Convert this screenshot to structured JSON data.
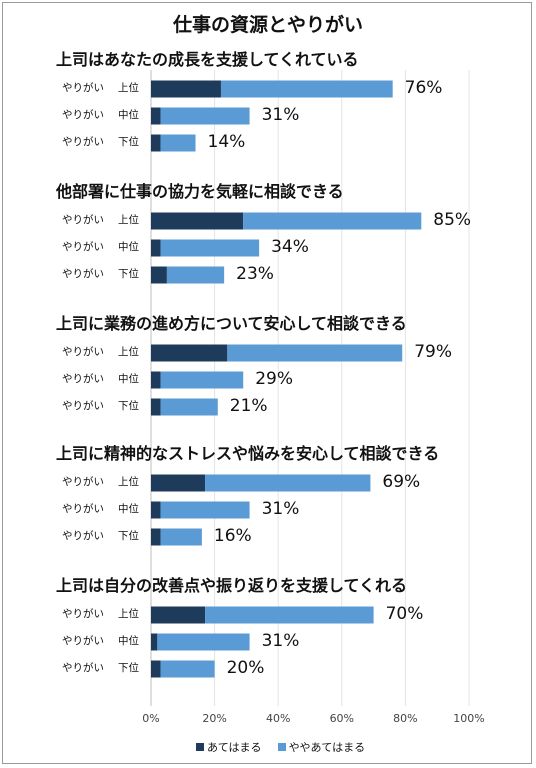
{
  "chart_data": {
    "type": "bar",
    "orientation": "horizontal",
    "stacked": true,
    "title": "仕事の資源とやりがい",
    "xlim": [
      0,
      100
    ],
    "xticks": [
      "0%",
      "20%",
      "40%",
      "60%",
      "80%",
      "100%"
    ],
    "grid": true,
    "legend_position": "bottom",
    "series": [
      {
        "name": "あてはまる",
        "color": "#1f3b5c"
      },
      {
        "name": "ややあてはまる",
        "color": "#5b9bd5"
      }
    ],
    "groups": [
      {
        "title": "上司はあなたの成長を支援してくれている",
        "rows": [
          {
            "label": "やりがい",
            "level": "上位",
            "values": [
              22,
              54
            ],
            "total": "76%"
          },
          {
            "label": "やりがい",
            "level": "中位",
            "values": [
              3,
              28
            ],
            "total": "31%"
          },
          {
            "label": "やりがい",
            "level": "下位",
            "values": [
              3,
              11
            ],
            "total": "14%"
          }
        ]
      },
      {
        "title": "他部署に仕事の協力を気軽に相談できる",
        "rows": [
          {
            "label": "やりがい",
            "level": "上位",
            "values": [
              29,
              56
            ],
            "total": "85%"
          },
          {
            "label": "やりがい",
            "level": "中位",
            "values": [
              3,
              31
            ],
            "total": "34%"
          },
          {
            "label": "やりがい",
            "level": "下位",
            "values": [
              5,
              18
            ],
            "total": "23%"
          }
        ]
      },
      {
        "title": "上司に業務の進め方について安心して相談できる",
        "rows": [
          {
            "label": "やりがい",
            "level": "上位",
            "values": [
              24,
              55
            ],
            "total": "79%"
          },
          {
            "label": "やりがい",
            "level": "中位",
            "values": [
              3,
              26
            ],
            "total": "29%"
          },
          {
            "label": "やりがい",
            "level": "下位",
            "values": [
              3,
              18
            ],
            "total": "21%"
          }
        ]
      },
      {
        "title": "上司に精神的なストレスや悩みを安心して相談できる",
        "rows": [
          {
            "label": "やりがい",
            "level": "上位",
            "values": [
              17,
              52
            ],
            "total": "69%"
          },
          {
            "label": "やりがい",
            "level": "中位",
            "values": [
              3,
              28
            ],
            "total": "31%"
          },
          {
            "label": "やりがい",
            "level": "下位",
            "values": [
              3,
              13
            ],
            "total": "16%"
          }
        ]
      },
      {
        "title": "上司は自分の改善点や振り返りを支援してくれる",
        "rows": [
          {
            "label": "やりがい",
            "level": "上位",
            "values": [
              17,
              53
            ],
            "total": "70%"
          },
          {
            "label": "やりがい",
            "level": "中位",
            "values": [
              2,
              29
            ],
            "total": "31%"
          },
          {
            "label": "やりがい",
            "level": "下位",
            "values": [
              3,
              17
            ],
            "total": "20%"
          }
        ]
      }
    ]
  }
}
